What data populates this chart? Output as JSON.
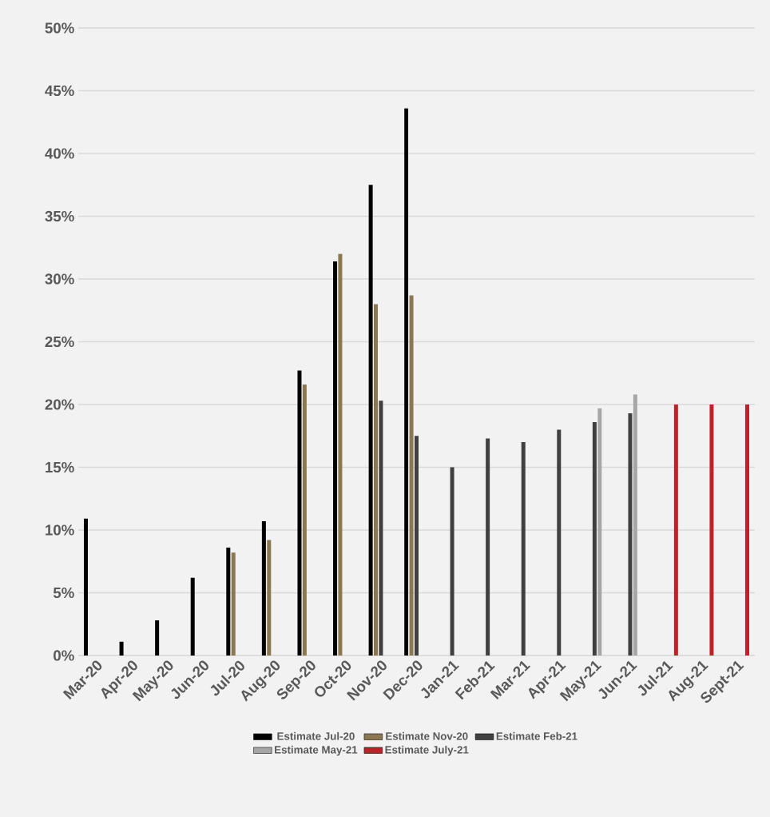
{
  "chart_data": {
    "type": "bar",
    "categories": [
      "Mar-20",
      "Apr-20",
      "May-20",
      "Jun-20",
      "Jul-20",
      "Aug-20",
      "Sep-20",
      "Oct-20",
      "Nov-20",
      "Dec-20",
      "Jan-21",
      "Feb-21",
      "Mar-21",
      "Apr-21",
      "May-21",
      "Jun-21",
      "Jul-21",
      "Aug-21",
      "Sept-21"
    ],
    "series": [
      {
        "name": "Estimate Jul-20",
        "color": "#000000",
        "values": [
          10.9,
          1.1,
          2.8,
          6.2,
          8.6,
          10.7,
          22.7,
          31.4,
          37.5,
          43.6,
          null,
          null,
          null,
          null,
          null,
          null,
          null,
          null,
          null
        ]
      },
      {
        "name": "Estimate Nov-20",
        "color": "#8b7750",
        "values": [
          null,
          null,
          null,
          null,
          8.2,
          9.2,
          21.6,
          32.0,
          28.0,
          28.7,
          null,
          null,
          null,
          null,
          null,
          null,
          null,
          null,
          null
        ]
      },
      {
        "name": "Estimate Feb-21",
        "color": "#404040",
        "values": [
          null,
          null,
          null,
          null,
          null,
          null,
          null,
          null,
          20.3,
          17.5,
          15.0,
          17.3,
          17.0,
          18.0,
          18.6,
          19.3,
          null,
          null,
          null
        ]
      },
      {
        "name": "Estimate May-21",
        "color": "#a6a6a6",
        "values": [
          null,
          null,
          null,
          null,
          null,
          null,
          null,
          null,
          null,
          null,
          null,
          null,
          null,
          null,
          19.7,
          20.8,
          null,
          null,
          null
        ]
      },
      {
        "name": "Estimate July-21",
        "color": "#c0202a",
        "values": [
          null,
          null,
          null,
          null,
          null,
          null,
          null,
          null,
          null,
          null,
          null,
          null,
          null,
          null,
          null,
          null,
          20,
          20,
          20
        ]
      }
    ],
    "ylim": [
      0,
      50
    ],
    "yticks": [
      {
        "value": 0,
        "label": "0%"
      },
      {
        "value": 5,
        "label": "5%"
      },
      {
        "value": 10,
        "label": "10%"
      },
      {
        "value": 15,
        "label": "15%"
      },
      {
        "value": 20,
        "label": "20%"
      },
      {
        "value": 25,
        "label": "25%"
      },
      {
        "value": 30,
        "label": "30%"
      },
      {
        "value": 35,
        "label": "35%"
      },
      {
        "value": 40,
        "label": "40%"
      },
      {
        "value": 45,
        "label": "45%"
      },
      {
        "value": 50,
        "label": "50%"
      }
    ],
    "grid": "y",
    "legend": "bottom"
  }
}
